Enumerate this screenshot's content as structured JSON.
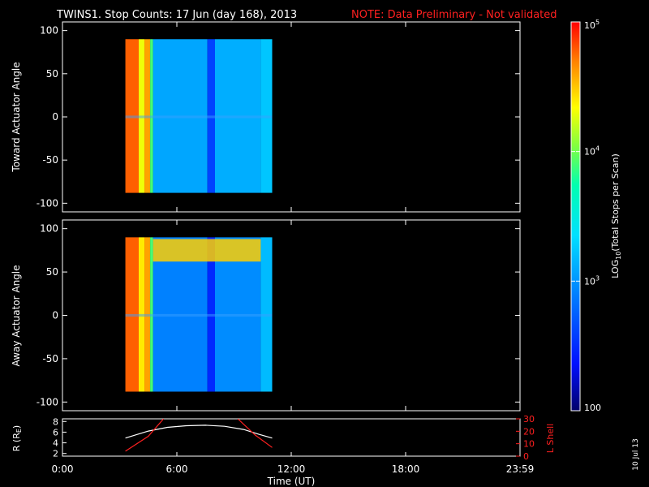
{
  "title": {
    "main": "TWINS1. Stop Counts: 17 Jun (day 168), 2013",
    "note": "NOTE: Data Preliminary - Not validated"
  },
  "date_stamp": "10 Jul 13",
  "colorbar": {
    "label": "LOG10(Total Stops per Scan)",
    "ticks": [
      "10^5",
      "10^4",
      "10^3",
      "100"
    ],
    "tick_values": [
      100000,
      10000,
      1000,
      100
    ]
  },
  "chart_data": [
    {
      "type": "heatmap",
      "ylabel": "Toward Actuator Angle",
      "ylim": [
        -110,
        110
      ],
      "yticks": [
        "100",
        "50",
        "0",
        "-50",
        "-100"
      ],
      "ytick_values": [
        100,
        50,
        0,
        -50,
        -100
      ],
      "xlim": [
        0,
        24
      ],
      "data_time_range_hours": [
        3.3,
        11.0
      ],
      "angle_range": [
        -88,
        90
      ],
      "bands": [
        {
          "t0": 3.3,
          "t1": 4.0,
          "value": 60000
        },
        {
          "t0": 4.0,
          "t1": 4.3,
          "value": 20000
        },
        {
          "t0": 4.3,
          "t1": 4.6,
          "value": 40000
        },
        {
          "t0": 4.6,
          "t1": 4.75,
          "value": 8000
        },
        {
          "t0": 4.75,
          "t1": 7.6,
          "value": 1200
        },
        {
          "t0": 7.6,
          "t1": 8.0,
          "value": 400
        },
        {
          "t0": 8.0,
          "t1": 10.4,
          "value": 1300
        },
        {
          "t0": 10.4,
          "t1": 11.0,
          "value": 1700
        }
      ]
    },
    {
      "type": "heatmap",
      "ylabel": "Away Actuator Angle",
      "ylim": [
        -110,
        110
      ],
      "yticks": [
        "100",
        "50",
        "0",
        "-50",
        "-100"
      ],
      "ytick_values": [
        100,
        50,
        0,
        -50,
        -100
      ],
      "xlim": [
        0,
        24
      ],
      "data_time_range_hours": [
        3.3,
        11.0
      ],
      "angle_range": [
        -88,
        90
      ],
      "bands": [
        {
          "t0": 3.3,
          "t1": 4.0,
          "value": 60000
        },
        {
          "t0": 4.0,
          "t1": 4.3,
          "value": 25000
        },
        {
          "t0": 4.3,
          "t1": 4.6,
          "value": 40000
        },
        {
          "t0": 4.6,
          "t1": 4.75,
          "value": 8000
        },
        {
          "t0": 4.75,
          "t1": 7.6,
          "value": 800
        },
        {
          "t0": 7.6,
          "t1": 8.0,
          "value": 300
        },
        {
          "t0": 8.0,
          "t1": 10.4,
          "value": 900
        },
        {
          "t0": 10.4,
          "t1": 11.0,
          "value": 1500
        }
      ],
      "hot_band": {
        "angle_top": 88,
        "angle_bottom": 62,
        "t0": 4.75,
        "t1": 10.4,
        "value": 30000
      }
    },
    {
      "type": "line",
      "ylabel": "R (RE)",
      "y2label": "L Shell",
      "ylim": [
        1.5,
        8.5
      ],
      "yticks": [
        "8",
        "6",
        "4",
        "2"
      ],
      "ytick_values": [
        8,
        6,
        4,
        2
      ],
      "y2lim": [
        0,
        30
      ],
      "y2ticks": [
        "30",
        "20",
        "10",
        "0"
      ],
      "y2tick_values": [
        30,
        20,
        10,
        0
      ],
      "xlabel": "Time (UT)",
      "xlim": [
        0,
        24
      ],
      "xticks": [
        "0:00",
        "6:00",
        "12:00",
        "18:00",
        "23:59"
      ],
      "xtick_values": [
        0,
        6,
        12,
        18,
        24
      ],
      "series": [
        {
          "color": "#ffffff",
          "axis": "left",
          "x": [
            3.3,
            4.5,
            5.5,
            6.5,
            7.5,
            8.5,
            9.5,
            10.3,
            11.0
          ],
          "y": [
            4.9,
            6.2,
            6.9,
            7.2,
            7.3,
            7.1,
            6.5,
            5.6,
            4.9
          ]
        },
        {
          "color": "#ff2020",
          "axis": "right",
          "x": [
            3.3,
            4.5,
            5.3
          ],
          "y": [
            4,
            16,
            30
          ]
        },
        {
          "color": "#ff2020",
          "axis": "right",
          "x": [
            9.2,
            10.1,
            11.0
          ],
          "y": [
            30,
            17,
            7
          ]
        }
      ]
    }
  ]
}
